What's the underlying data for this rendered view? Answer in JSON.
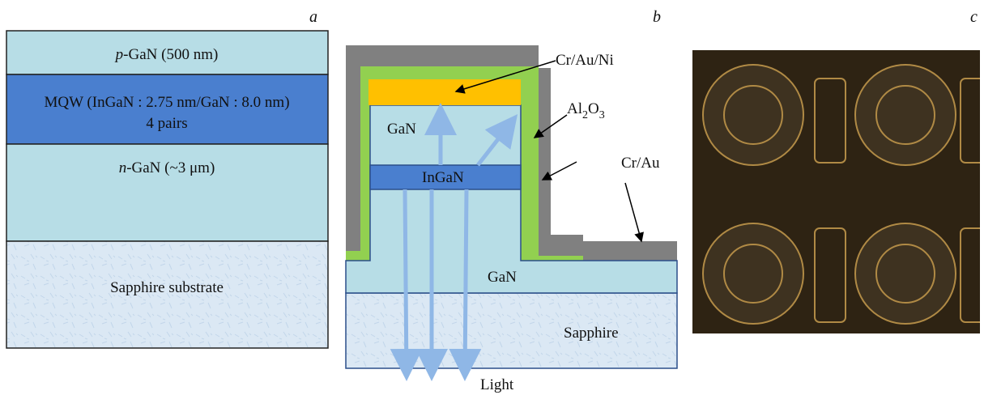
{
  "panel_a": {
    "label": "a",
    "p_gan": [
      "p",
      "-GaN (500 nm)"
    ],
    "mqw": [
      "MQW (InGaN : 2.75 nm/GaN : 8.0 nm)",
      "4 pairs"
    ],
    "n_gan": [
      "n",
      "-GaN (~3 μm)"
    ],
    "substrate": "Sapphire substrate"
  },
  "panel_b": {
    "label": "b",
    "contact_top": "Cr/Au/Ni",
    "gan_upper": "GaN",
    "oxide": [
      "Al",
      "2",
      "O",
      "3"
    ],
    "ingan": "InGaN",
    "contact_side": "Cr/Au",
    "gan_lower": "GaN",
    "sapphire": "Sapphire",
    "light": "Light"
  },
  "panel_c": {
    "label": "c"
  }
}
